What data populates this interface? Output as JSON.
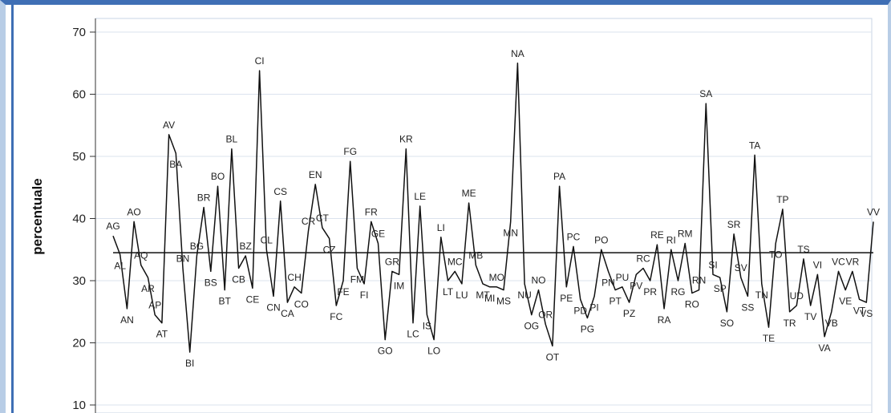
{
  "chart_data": {
    "type": "line",
    "ylabel": "percentuale",
    "ylim": [
      10,
      72
    ],
    "yticks": [
      10,
      20,
      30,
      40,
      50,
      60,
      70
    ],
    "reference_line": 34.5,
    "grid": true,
    "colors": {
      "line": "#111111",
      "grid": "#dbe3ee",
      "frame": "#3f6fb5"
    },
    "points": [
      {
        "label": "AG",
        "y": 37.2
      },
      {
        "label": "AL",
        "y": 34.2
      },
      {
        "label": "AN",
        "y": 25.5
      },
      {
        "label": "AO",
        "y": 39.5
      },
      {
        "label": "AQ",
        "y": 32.5
      },
      {
        "label": "AR",
        "y": 30.5
      },
      {
        "label": "AP",
        "y": 24.5
      },
      {
        "label": "AT",
        "y": 23.2
      },
      {
        "label": "AV",
        "y": 53.5
      },
      {
        "label": "BA",
        "y": 50.5
      },
      {
        "label": "BN",
        "y": 32.0
      },
      {
        "label": "BI",
        "y": 18.5
      },
      {
        "label": "BG",
        "y": 34.0
      },
      {
        "label": "BR",
        "y": 41.8
      },
      {
        "label": "BS",
        "y": 31.5
      },
      {
        "label": "BO",
        "y": 45.2
      },
      {
        "label": "BT",
        "y": 28.5
      },
      {
        "label": "BL",
        "y": 51.2
      },
      {
        "label": "CB",
        "y": 32.0
      },
      {
        "label": "BZ",
        "y": 34.0
      },
      {
        "label": "CE",
        "y": 28.8
      },
      {
        "label": "CI",
        "y": 63.8
      },
      {
        "label": "CL",
        "y": 35.0
      },
      {
        "label": "CN",
        "y": 27.5
      },
      {
        "label": "CS",
        "y": 42.8
      },
      {
        "label": "CA",
        "y": 26.5
      },
      {
        "label": "CH",
        "y": 29.0
      },
      {
        "label": "CO",
        "y": 28.0
      },
      {
        "label": "CR",
        "y": 38.0
      },
      {
        "label": "EN",
        "y": 45.5
      },
      {
        "label": "CT",
        "y": 38.5
      },
      {
        "label": "CZ",
        "y": 36.8
      },
      {
        "label": "FC",
        "y": 26.0
      },
      {
        "label": "FE",
        "y": 30.0
      },
      {
        "label": "FG",
        "y": 49.2
      },
      {
        "label": "FM",
        "y": 32.0
      },
      {
        "label": "FI",
        "y": 29.5
      },
      {
        "label": "FR",
        "y": 39.5
      },
      {
        "label": "GE",
        "y": 36.0
      },
      {
        "label": "GO",
        "y": 20.5
      },
      {
        "label": "GR",
        "y": 31.5
      },
      {
        "label": "IM",
        "y": 31.0
      },
      {
        "label": "KR",
        "y": 51.2
      },
      {
        "label": "LC",
        "y": 23.2
      },
      {
        "label": "LE",
        "y": 42.0
      },
      {
        "label": "IS",
        "y": 24.5
      },
      {
        "label": "LO",
        "y": 20.5
      },
      {
        "label": "LI",
        "y": 37.0
      },
      {
        "label": "LT",
        "y": 30.0
      },
      {
        "label": "MC",
        "y": 31.5
      },
      {
        "label": "LU",
        "y": 29.5
      },
      {
        "label": "ME",
        "y": 42.5
      },
      {
        "label": "MB",
        "y": 32.5
      },
      {
        "label": "MT",
        "y": 29.5
      },
      {
        "label": "MI",
        "y": 29.0
      },
      {
        "label": "MO",
        "y": 29.0
      },
      {
        "label": "MS",
        "y": 28.5
      },
      {
        "label": "MN",
        "y": 39.5
      },
      {
        "label": "NA",
        "y": 65.0
      },
      {
        "label": "NU",
        "y": 29.5
      },
      {
        "label": "OG",
        "y": 24.5
      },
      {
        "label": "NO",
        "y": 28.5
      },
      {
        "label": "OR",
        "y": 23.0
      },
      {
        "label": "OT",
        "y": 19.5
      },
      {
        "label": "PA",
        "y": 45.2
      },
      {
        "label": "PE",
        "y": 29.0
      },
      {
        "label": "PC",
        "y": 35.5
      },
      {
        "label": "PD",
        "y": 27.0
      },
      {
        "label": "PG",
        "y": 24.0
      },
      {
        "label": "PI",
        "y": 27.5
      },
      {
        "label": "PO",
        "y": 35.0
      },
      {
        "label": "PN",
        "y": 31.5
      },
      {
        "label": "PT",
        "y": 28.5
      },
      {
        "label": "PU",
        "y": 29.0
      },
      {
        "label": "PZ",
        "y": 26.5
      },
      {
        "label": "PV",
        "y": 31.0
      },
      {
        "label": "RC",
        "y": 32.0
      },
      {
        "label": "PR",
        "y": 30.0
      },
      {
        "label": "RE",
        "y": 35.8
      },
      {
        "label": "RA",
        "y": 25.5
      },
      {
        "label": "RI",
        "y": 35.0
      },
      {
        "label": "RG",
        "y": 30.0
      },
      {
        "label": "RM",
        "y": 36.0
      },
      {
        "label": "RO",
        "y": 28.0
      },
      {
        "label": "RN",
        "y": 28.5
      },
      {
        "label": "SA",
        "y": 58.5
      },
      {
        "label": "SI",
        "y": 31.0
      },
      {
        "label": "SP",
        "y": 30.5
      },
      {
        "label": "SO",
        "y": 25.0
      },
      {
        "label": "SR",
        "y": 37.5
      },
      {
        "label": "SV",
        "y": 30.5
      },
      {
        "label": "SS",
        "y": 27.5
      },
      {
        "label": "TA",
        "y": 50.2
      },
      {
        "label": "TN",
        "y": 29.5
      },
      {
        "label": "TE",
        "y": 22.5
      },
      {
        "label": "TO",
        "y": 36.0
      },
      {
        "label": "TP",
        "y": 41.5
      },
      {
        "label": "TR",
        "y": 25.0
      },
      {
        "label": "UD",
        "y": 26.0
      },
      {
        "label": "TS",
        "y": 33.5
      },
      {
        "label": "TV",
        "y": 26.0
      },
      {
        "label": "VI",
        "y": 31.0
      },
      {
        "label": "VA",
        "y": 21.0
      },
      {
        "label": "VB",
        "y": 25.0
      },
      {
        "label": "VC",
        "y": 31.5
      },
      {
        "label": "VE",
        "y": 28.5
      },
      {
        "label": "VR",
        "y": 31.5
      },
      {
        "label": "VT",
        "y": 27.0
      },
      {
        "label": "VS",
        "y": 26.5
      },
      {
        "label": "VV",
        "y": 39.5
      }
    ]
  }
}
